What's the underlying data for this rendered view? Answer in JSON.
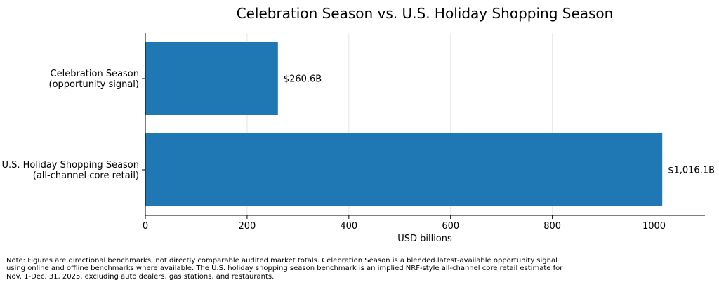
{
  "chart_data": {
    "type": "bar",
    "orientation": "horizontal",
    "title": "Celebration Season vs. U.S. Holiday Shopping Season",
    "xlabel": "USD billions",
    "ylabel": "",
    "xlim": [
      0,
      1100
    ],
    "xticks": [
      0,
      200,
      400,
      600,
      800,
      1000
    ],
    "grid": "x",
    "legend": "none",
    "categories": [
      [
        "Celebration Season",
        "(opportunity signal)"
      ],
      [
        "U.S. Holiday Shopping Season",
        "(all-channel core retail)"
      ]
    ],
    "values": [
      260.6,
      1016.1
    ],
    "value_labels": [
      "$260.6B",
      "$1,016.1B"
    ],
    "bar_color": "#1f77b4"
  },
  "note": {
    "lines": [
      "Note: Figures are directional benchmarks, not directly comparable audited market totals. Celebration Season is a blended latest-available opportunity signal",
      "using online and offline benchmarks where available. The U.S. holiday shopping season benchmark is an implied NRF-style all-channel core retail estimate for",
      "Nov. 1-Dec. 31, 2025, excluding auto dealers, gas stations, and restaurants."
    ]
  }
}
